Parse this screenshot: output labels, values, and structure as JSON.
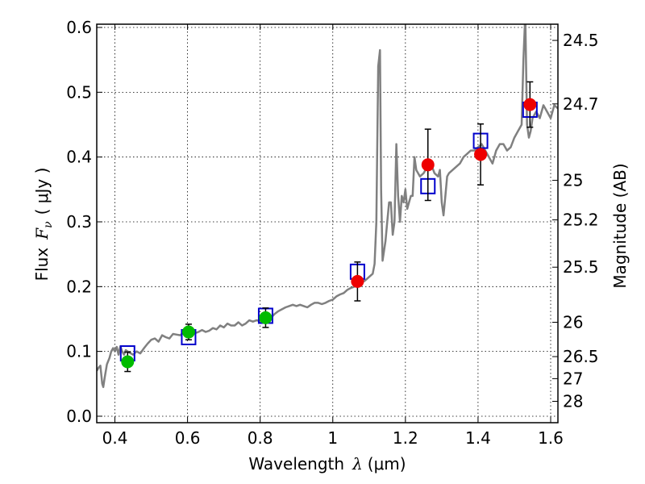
{
  "chart_data": {
    "type": "scatter",
    "xlabel_text": "Wavelength",
    "xlabel_symbol": "λ",
    "xlabel_unit": "(μm)",
    "ylabel_text": "Flux",
    "ylabel_symbol": "F",
    "ylabel_subscript": "ν",
    "ylabel_unit": "( μJy )",
    "ylabel_right": "Magnitude (AB)",
    "xlim": [
      0.35,
      1.62
    ],
    "ylim": [
      -0.01,
      0.605
    ],
    "grid": true,
    "x_ticks": [
      0.4,
      0.6,
      0.8,
      1.0,
      1.2,
      1.4,
      1.6
    ],
    "x_tick_labels": [
      "0.4",
      "0.6",
      "0.8",
      "1",
      "1.2",
      "1.4",
      "1.6"
    ],
    "y_ticks": [
      0.0,
      0.1,
      0.2,
      0.3,
      0.4,
      0.5,
      0.6
    ],
    "y_tick_labels": [
      "0.0",
      "0.1",
      "0.2",
      "0.3",
      "0.4",
      "0.5",
      "0.6"
    ],
    "right_axis_ticks": [
      {
        "label": "24.5",
        "flux": 0.58
      },
      {
        "label": "24.7",
        "flux": 0.482
      },
      {
        "label": "25",
        "flux": 0.364
      },
      {
        "label": "25.2",
        "flux": 0.303
      },
      {
        "label": "25.5",
        "flux": 0.23
      },
      {
        "label": "26",
        "flux": 0.145
      },
      {
        "label": "26.5",
        "flux": 0.092
      },
      {
        "label": "27",
        "flux": 0.058
      },
      {
        "label": "28",
        "flux": 0.023
      }
    ],
    "series": [
      {
        "type": "line",
        "color": "#808080",
        "points": [
          [
            0.35,
            0.07
          ],
          [
            0.355,
            0.075
          ],
          [
            0.36,
            0.078
          ],
          [
            0.365,
            0.05
          ],
          [
            0.368,
            0.045
          ],
          [
            0.372,
            0.06
          ],
          [
            0.378,
            0.08
          ],
          [
            0.385,
            0.09
          ],
          [
            0.39,
            0.1
          ],
          [
            0.395,
            0.105
          ],
          [
            0.4,
            0.1
          ],
          [
            0.405,
            0.107
          ],
          [
            0.41,
            0.095
          ],
          [
            0.415,
            0.108
          ],
          [
            0.42,
            0.1
          ],
          [
            0.425,
            0.095
          ],
          [
            0.43,
            0.102
          ],
          [
            0.44,
            0.098
          ],
          [
            0.45,
            0.095
          ],
          [
            0.46,
            0.1
          ],
          [
            0.47,
            0.097
          ],
          [
            0.48,
            0.105
          ],
          [
            0.49,
            0.112
          ],
          [
            0.5,
            0.118
          ],
          [
            0.51,
            0.12
          ],
          [
            0.52,
            0.115
          ],
          [
            0.53,
            0.125
          ],
          [
            0.54,
            0.122
          ],
          [
            0.55,
            0.12
          ],
          [
            0.56,
            0.127
          ],
          [
            0.57,
            0.126
          ],
          [
            0.58,
            0.125
          ],
          [
            0.59,
            0.13
          ],
          [
            0.6,
            0.128
          ],
          [
            0.61,
            0.133
          ],
          [
            0.62,
            0.128
          ],
          [
            0.63,
            0.13
          ],
          [
            0.64,
            0.133
          ],
          [
            0.65,
            0.13
          ],
          [
            0.66,
            0.132
          ],
          [
            0.67,
            0.136
          ],
          [
            0.68,
            0.134
          ],
          [
            0.69,
            0.14
          ],
          [
            0.7,
            0.137
          ],
          [
            0.71,
            0.143
          ],
          [
            0.72,
            0.14
          ],
          [
            0.73,
            0.14
          ],
          [
            0.74,
            0.145
          ],
          [
            0.75,
            0.14
          ],
          [
            0.76,
            0.143
          ],
          [
            0.77,
            0.148
          ],
          [
            0.78,
            0.146
          ],
          [
            0.79,
            0.148
          ],
          [
            0.8,
            0.147
          ],
          [
            0.81,
            0.15
          ],
          [
            0.82,
            0.153
          ],
          [
            0.83,
            0.152
          ],
          [
            0.84,
            0.158
          ],
          [
            0.85,
            0.162
          ],
          [
            0.86,
            0.165
          ],
          [
            0.87,
            0.168
          ],
          [
            0.88,
            0.17
          ],
          [
            0.89,
            0.172
          ],
          [
            0.9,
            0.17
          ],
          [
            0.91,
            0.172
          ],
          [
            0.92,
            0.17
          ],
          [
            0.93,
            0.168
          ],
          [
            0.94,
            0.172
          ],
          [
            0.95,
            0.175
          ],
          [
            0.96,
            0.175
          ],
          [
            0.97,
            0.173
          ],
          [
            0.98,
            0.175
          ],
          [
            0.99,
            0.178
          ],
          [
            1.0,
            0.18
          ],
          [
            1.01,
            0.185
          ],
          [
            1.02,
            0.188
          ],
          [
            1.03,
            0.19
          ],
          [
            1.04,
            0.195
          ],
          [
            1.05,
            0.198
          ],
          [
            1.06,
            0.2
          ],
          [
            1.07,
            0.203
          ],
          [
            1.08,
            0.206
          ],
          [
            1.09,
            0.21
          ],
          [
            1.1,
            0.215
          ],
          [
            1.11,
            0.22
          ],
          [
            1.115,
            0.235
          ],
          [
            1.12,
            0.3
          ],
          [
            1.125,
            0.54
          ],
          [
            1.13,
            0.565
          ],
          [
            1.133,
            0.35
          ],
          [
            1.137,
            0.24
          ],
          [
            1.145,
            0.27
          ],
          [
            1.15,
            0.3
          ],
          [
            1.155,
            0.33
          ],
          [
            1.16,
            0.33
          ],
          [
            1.165,
            0.28
          ],
          [
            1.17,
            0.3
          ],
          [
            1.175,
            0.42
          ],
          [
            1.18,
            0.34
          ],
          [
            1.185,
            0.3
          ],
          [
            1.19,
            0.34
          ],
          [
            1.195,
            0.33
          ],
          [
            1.2,
            0.35
          ],
          [
            1.205,
            0.32
          ],
          [
            1.21,
            0.33
          ],
          [
            1.215,
            0.34
          ],
          [
            1.22,
            0.34
          ],
          [
            1.225,
            0.4
          ],
          [
            1.23,
            0.38
          ],
          [
            1.24,
            0.37
          ],
          [
            1.25,
            0.375
          ],
          [
            1.26,
            0.385
          ],
          [
            1.27,
            0.39
          ],
          [
            1.28,
            0.375
          ],
          [
            1.29,
            0.37
          ],
          [
            1.295,
            0.38
          ],
          [
            1.3,
            0.33
          ],
          [
            1.305,
            0.31
          ],
          [
            1.31,
            0.34
          ],
          [
            1.315,
            0.37
          ],
          [
            1.32,
            0.375
          ],
          [
            1.33,
            0.38
          ],
          [
            1.34,
            0.385
          ],
          [
            1.35,
            0.39
          ],
          [
            1.36,
            0.4
          ],
          [
            1.37,
            0.405
          ],
          [
            1.38,
            0.41
          ],
          [
            1.39,
            0.41
          ],
          [
            1.4,
            0.415
          ],
          [
            1.41,
            0.42
          ],
          [
            1.42,
            0.41
          ],
          [
            1.43,
            0.4
          ],
          [
            1.44,
            0.39
          ],
          [
            1.45,
            0.41
          ],
          [
            1.46,
            0.42
          ],
          [
            1.47,
            0.42
          ],
          [
            1.48,
            0.41
          ],
          [
            1.49,
            0.415
          ],
          [
            1.5,
            0.43
          ],
          [
            1.51,
            0.44
          ],
          [
            1.52,
            0.45
          ],
          [
            1.525,
            0.55
          ],
          [
            1.53,
            0.62
          ],
          [
            1.535,
            0.45
          ],
          [
            1.54,
            0.43
          ],
          [
            1.545,
            0.44
          ],
          [
            1.55,
            0.46
          ],
          [
            1.56,
            0.47
          ],
          [
            1.57,
            0.46
          ],
          [
            1.58,
            0.48
          ],
          [
            1.59,
            0.47
          ],
          [
            1.6,
            0.46
          ],
          [
            1.61,
            0.48
          ],
          [
            1.62,
            0.475
          ]
        ]
      },
      {
        "type": "scatter",
        "marker": "square-open",
        "color": "#0000cc",
        "points": [
          [
            0.435,
            0.097
          ],
          [
            0.603,
            0.122
          ],
          [
            0.815,
            0.155
          ],
          [
            1.068,
            0.223
          ],
          [
            1.262,
            0.355
          ],
          [
            1.407,
            0.425
          ],
          [
            1.543,
            0.473
          ]
        ]
      },
      {
        "type": "scatter",
        "marker": "circle",
        "color": "#00bb00",
        "points": [
          [
            0.435,
            0.084
          ],
          [
            0.603,
            0.13
          ],
          [
            0.815,
            0.152
          ]
        ],
        "yerr": [
          0.015,
          0.012,
          0.015
        ]
      },
      {
        "type": "scatter",
        "marker": "circle",
        "color": "#ee0000",
        "points": [
          [
            1.068,
            0.208
          ],
          [
            1.262,
            0.388
          ],
          [
            1.407,
            0.404
          ],
          [
            1.543,
            0.481
          ]
        ],
        "yerr": [
          0.03,
          0.055,
          0.047,
          0.035
        ]
      }
    ]
  }
}
